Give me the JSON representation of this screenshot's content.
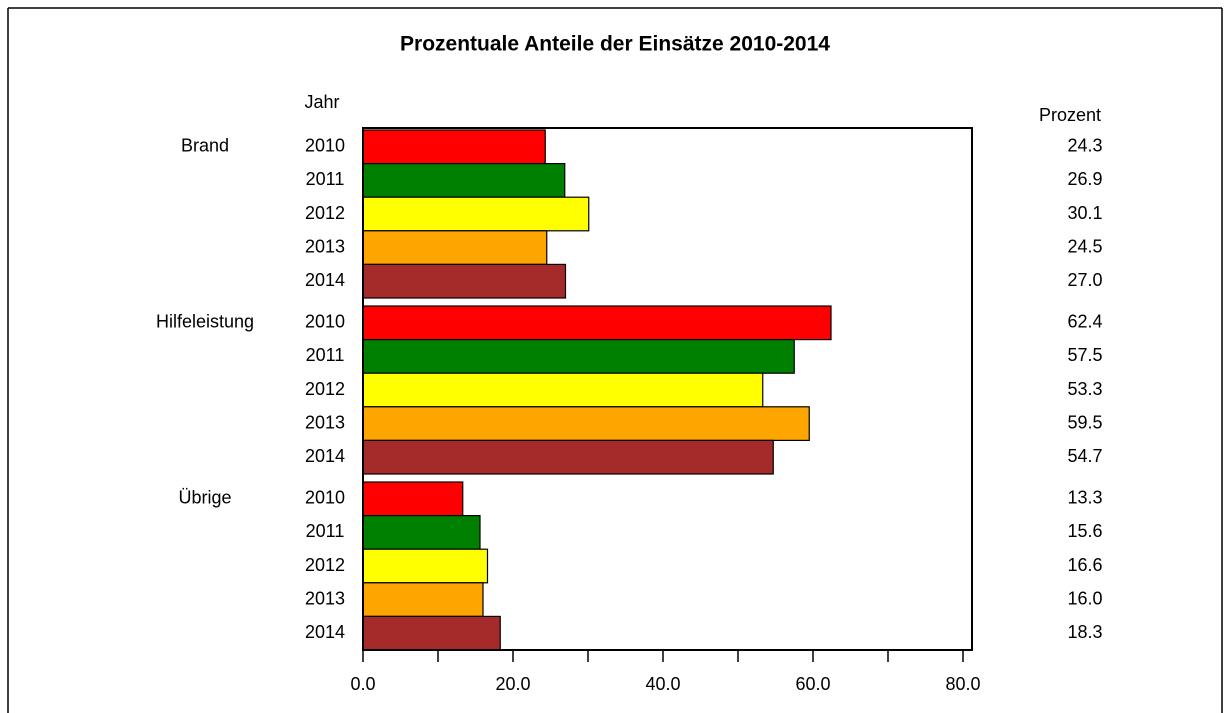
{
  "chart_data": {
    "type": "bar",
    "orientation": "horizontal",
    "title": "Prozentuale Anteile der Einsätze 2010-2014",
    "y_label": "Jahr",
    "value_header": "Prozent",
    "categories": [
      "Brand",
      "Hilfeleistung",
      "Übrige"
    ],
    "series": [
      {
        "name": "2010",
        "color": "#ff0000",
        "values": [
          24.3,
          62.4,
          13.3
        ],
        "value_labels": [
          "24.3",
          "62.4",
          "13.3"
        ]
      },
      {
        "name": "2011",
        "color": "#008000",
        "values": [
          26.9,
          57.5,
          15.6
        ],
        "value_labels": [
          "26.9",
          "57.5",
          "15.6"
        ]
      },
      {
        "name": "2012",
        "color": "#ffff00",
        "values": [
          30.1,
          53.3,
          16.6
        ],
        "value_labels": [
          "30.1",
          "53.3",
          "16.6"
        ]
      },
      {
        "name": "2013",
        "color": "#ffa500",
        "values": [
          24.5,
          59.5,
          16.0
        ],
        "value_labels": [
          "24.5",
          "59.5",
          "16.0"
        ]
      },
      {
        "name": "2014",
        "color": "#a52a2a",
        "values": [
          27.0,
          54.7,
          18.3
        ],
        "value_labels": [
          "27.0",
          "54.7",
          "18.3"
        ]
      }
    ],
    "xlim": [
      0,
      81.2
    ],
    "xticks": [
      {
        "value": 0,
        "label": "0.0"
      },
      {
        "value": 20,
        "label": "20.0"
      },
      {
        "value": 40,
        "label": "40.0"
      },
      {
        "value": 60,
        "label": "60.0"
      },
      {
        "value": 80,
        "label": "80.0"
      }
    ],
    "xminorticks": [
      10,
      30,
      50,
      70
    ]
  }
}
